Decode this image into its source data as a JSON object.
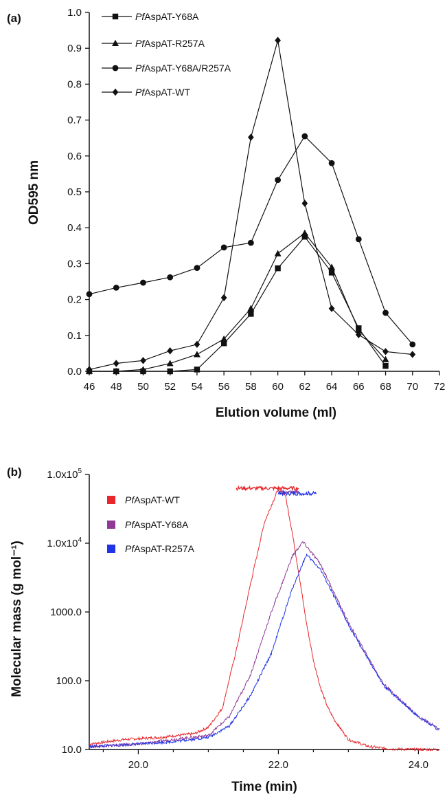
{
  "chart_data": [
    {
      "panel_label": "(a)",
      "type": "line",
      "xlabel": "Elution volume (ml)",
      "ylabel": "OD595 nm",
      "xlim": [
        46,
        72
      ],
      "ylim": [
        0,
        1.0
      ],
      "xticks": [
        46,
        48,
        50,
        52,
        54,
        56,
        58,
        60,
        62,
        64,
        66,
        68,
        70,
        72
      ],
      "yticks": [
        "0.0",
        "0.1",
        "0.2",
        "0.3",
        "0.4",
        "0.5",
        "0.6",
        "0.7",
        "0.8",
        "0.9",
        "1.0"
      ],
      "grid": false,
      "legend_position": "top-left",
      "series": [
        {
          "name_italic": "Pf",
          "name_rest": "AspAT-Y68A",
          "marker": "square",
          "x": [
            46,
            48,
            50,
            52,
            54,
            56,
            58,
            60,
            62,
            64,
            66,
            68
          ],
          "y": [
            0.0,
            0.0,
            0.0,
            0.0,
            0.005,
            0.078,
            0.16,
            0.287,
            0.375,
            0.275,
            0.12,
            0.015
          ]
        },
        {
          "name_italic": "Pf",
          "name_rest": "AspAT-R257A",
          "marker": "triangle",
          "x": [
            46,
            48,
            50,
            52,
            54,
            56,
            58,
            60,
            62,
            64,
            66,
            68
          ],
          "y": [
            0.0,
            0.0,
            0.005,
            0.022,
            0.047,
            0.09,
            0.175,
            0.328,
            0.385,
            0.29,
            0.115,
            0.033
          ]
        },
        {
          "name_italic": "Pf",
          "name_rest": "AspAT-Y68A/R257A",
          "marker": "circle",
          "x": [
            46,
            48,
            50,
            52,
            54,
            56,
            58,
            60,
            62,
            64,
            66,
            68,
            70
          ],
          "y": [
            0.215,
            0.233,
            0.247,
            0.262,
            0.288,
            0.345,
            0.358,
            0.533,
            0.655,
            0.58,
            0.368,
            0.163,
            0.075
          ]
        },
        {
          "name_italic": "Pf",
          "name_rest": "AspAT-WT",
          "marker": "diamond",
          "x": [
            46,
            48,
            50,
            52,
            54,
            56,
            58,
            60,
            62,
            64,
            66,
            68,
            70
          ],
          "y": [
            0.005,
            0.022,
            0.03,
            0.057,
            0.075,
            0.205,
            0.652,
            0.922,
            0.468,
            0.175,
            0.102,
            0.055,
            0.047
          ]
        }
      ]
    },
    {
      "panel_label": "(b)",
      "type": "line",
      "xlabel": "Time (min)",
      "ylabel": "Molecular mass (g mol⁻¹)",
      "xlim": [
        19.3,
        24.3
      ],
      "yscale": "log",
      "ylim": [
        10,
        100000
      ],
      "xticks": [
        "20.0",
        "22.0",
        "24.0"
      ],
      "yticks": [
        {
          "base": "1.0x10",
          "exp": "5"
        },
        {
          "base": "1.0x10",
          "exp": "4"
        },
        {
          "base": "1000.0"
        },
        {
          "base": "100.0"
        },
        {
          "base": "10.0"
        }
      ],
      "grid": false,
      "legend_position": "top-left",
      "series": [
        {
          "name_italic": "Pf",
          "name_rest": "AspAT-WT",
          "color": "#e8262b",
          "x": [
            19.3,
            19.8,
            20.3,
            20.8,
            21.0,
            21.2,
            21.4,
            21.6,
            21.8,
            22.0,
            22.1,
            22.2,
            22.3,
            22.4,
            22.5,
            22.6,
            22.7,
            22.8,
            23.0,
            23.3,
            23.6,
            24.0,
            24.3
          ],
          "y": [
            12,
            14,
            15,
            17,
            21,
            40,
            280,
            2500,
            20000,
            62000,
            50000,
            14000,
            3200,
            700,
            200,
            80,
            42,
            27,
            14,
            11,
            10.2,
            10,
            10
          ],
          "plateau": {
            "x": [
              21.4,
              22.3
            ],
            "y": 63000
          }
        },
        {
          "name_italic": "Pf",
          "name_rest": "AspAT-Y68A",
          "color": "#8e3a96",
          "x": [
            19.3,
            20.0,
            20.5,
            21.0,
            21.3,
            21.6,
            21.9,
            22.2,
            22.35,
            22.6,
            23.0,
            23.5,
            24.0,
            24.3
          ],
          "y": [
            11,
            12,
            14,
            16,
            30,
            120,
            1000,
            6500,
            10500,
            5000,
            700,
            90,
            30,
            20
          ],
          "plateau": {
            "x": [
              22.0,
              22.3
            ],
            "y": 55000
          }
        },
        {
          "name_italic": "Pf",
          "name_rest": "AspAT-R257A",
          "color": "#1f33e8",
          "x": [
            19.3,
            20.0,
            20.5,
            21.0,
            21.3,
            21.6,
            21.9,
            22.2,
            22.4,
            22.6,
            23.0,
            23.5,
            24.0,
            24.3
          ],
          "y": [
            11,
            12,
            13,
            15,
            22,
            60,
            250,
            2200,
            6800,
            4200,
            650,
            85,
            30,
            19
          ],
          "plateau": {
            "x": [
              22.0,
              22.55
            ],
            "y": 53000
          }
        }
      ]
    }
  ]
}
